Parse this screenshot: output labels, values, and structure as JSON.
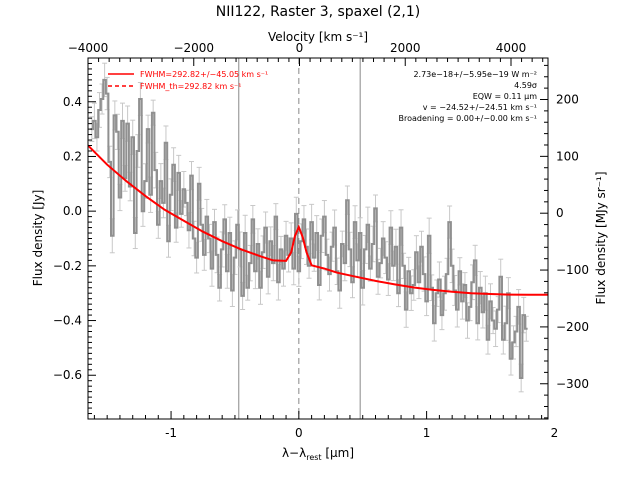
{
  "chart_data": {
    "type": "line",
    "title": "NII122, Raster 3, spaxel (2,1)",
    "xlabel": "λ−λ",
    "xlabel_sub": "rest",
    "xlabel_unit": " [μm]",
    "ylabel": "Flux density [Jy]",
    "top_xlabel": "Velocity [km s⁻¹]",
    "right_ylabel": "Flux density [MJy sr⁻¹]",
    "xlim": [
      -1.65,
      1.95
    ],
    "ylim": [
      -0.76,
      0.56
    ],
    "top_xlim": [
      -4000,
      4700
    ],
    "right_ylim": [
      -362,
      273
    ],
    "x_ticks": [
      -1,
      0,
      1,
      2
    ],
    "y_ticks": [
      -0.6,
      -0.4,
      -0.2,
      0.0,
      0.2,
      0.4
    ],
    "y_tick_labels": [
      "−0.6",
      "−0.4",
      "−0.2",
      "0.0",
      "0.2",
      "0.4"
    ],
    "top_x_ticks": [
      -4000,
      -2000,
      0,
      2000,
      4000
    ],
    "top_x_tick_labels": [
      "−4000",
      "−2000",
      "0",
      "2000",
      "4000"
    ],
    "right_y_ticks": [
      -300,
      -200,
      -100,
      0,
      100,
      200
    ],
    "right_y_tick_labels": [
      "−300",
      "−200",
      "−100",
      "0",
      "100",
      "200"
    ],
    "vlines": [
      -0.47,
      0.0,
      0.48
    ],
    "legend": [
      {
        "label": "FWHM=292.82+/−45.05 km s⁻¹",
        "style": "solid"
      },
      {
        "label": "FWHM_th=292.82 km s⁻¹",
        "style": "dashed"
      }
    ],
    "annotations": [
      "2.73e−18+/−5.95e−19 W m⁻²",
      "4.59σ",
      "EQW = 0.11 μm",
      "v = −24.52+/−24.51 km s⁻¹",
      "Broadening = 0.00+/−0.00 km s⁻¹"
    ],
    "series": [
      {
        "name": "spectrum",
        "color": "#909090",
        "x": [
          -1.62,
          -1.6,
          -1.58,
          -1.56,
          -1.54,
          -1.52,
          -1.5,
          -1.48,
          -1.46,
          -1.44,
          -1.42,
          -1.4,
          -1.38,
          -1.36,
          -1.34,
          -1.32,
          -1.3,
          -1.28,
          -1.26,
          -1.24,
          -1.22,
          -1.2,
          -1.18,
          -1.16,
          -1.14,
          -1.12,
          -1.1,
          -1.08,
          -1.06,
          -1.04,
          -1.02,
          -1.0,
          -0.98,
          -0.96,
          -0.94,
          -0.92,
          -0.9,
          -0.88,
          -0.86,
          -0.84,
          -0.82,
          -0.8,
          -0.78,
          -0.76,
          -0.74,
          -0.72,
          -0.7,
          -0.68,
          -0.66,
          -0.64,
          -0.62,
          -0.6,
          -0.58,
          -0.56,
          -0.54,
          -0.52,
          -0.5,
          -0.48,
          -0.46,
          -0.44,
          -0.42,
          -0.4,
          -0.38,
          -0.36,
          -0.34,
          -0.32,
          -0.3,
          -0.28,
          -0.26,
          -0.24,
          -0.22,
          -0.2,
          -0.18,
          -0.16,
          -0.14,
          -0.12,
          -0.1,
          -0.08,
          -0.06,
          -0.04,
          -0.02,
          0.0,
          0.02,
          0.04,
          0.06,
          0.08,
          0.1,
          0.12,
          0.14,
          0.16,
          0.18,
          0.2,
          0.22,
          0.24,
          0.26,
          0.28,
          0.3,
          0.32,
          0.34,
          0.36,
          0.38,
          0.4,
          0.42,
          0.44,
          0.46,
          0.48,
          0.5,
          0.52,
          0.54,
          0.56,
          0.58,
          0.6,
          0.62,
          0.64,
          0.66,
          0.68,
          0.7,
          0.72,
          0.74,
          0.76,
          0.78,
          0.8,
          0.82,
          0.84,
          0.86,
          0.88,
          0.9,
          0.92,
          0.94,
          0.96,
          0.98,
          1.0,
          1.02,
          1.04,
          1.06,
          1.08,
          1.1,
          1.12,
          1.14,
          1.16,
          1.18,
          1.2,
          1.22,
          1.24,
          1.26,
          1.28,
          1.3,
          1.32,
          1.34,
          1.36,
          1.38,
          1.4,
          1.42,
          1.44,
          1.46,
          1.48,
          1.5,
          1.52,
          1.54,
          1.56,
          1.58,
          1.6,
          1.62,
          1.64,
          1.66,
          1.68,
          1.7,
          1.72,
          1.74,
          1.76,
          1.78
        ],
        "y": [
          0.3,
          0.33,
          0.27,
          0.37,
          0.41,
          0.48,
          0.43,
          0.18,
          -0.09,
          0.35,
          0.29,
          0.05,
          0.33,
          0.12,
          0.32,
          0.09,
          0.27,
          -0.08,
          0.22,
          0.41,
          0.0,
          0.11,
          0.3,
          0.06,
          0.36,
          0.15,
          -0.05,
          0.11,
          0.03,
          0.25,
          -0.11,
          0.06,
          0.17,
          -0.06,
          0.14,
          -0.01,
          0.08,
          0.03,
          -0.07,
          0.13,
          -0.1,
          -0.17,
          0.1,
          -0.05,
          -0.16,
          -0.02,
          -0.1,
          -0.21,
          -0.04,
          -0.16,
          -0.28,
          -0.14,
          -0.03,
          -0.22,
          -0.08,
          -0.29,
          -0.17,
          -0.05,
          -0.14,
          -0.31,
          -0.08,
          -0.28,
          -0.19,
          -0.03,
          -0.22,
          -0.12,
          -0.28,
          -0.15,
          -0.06,
          -0.24,
          -0.11,
          -0.19,
          -0.02,
          -0.26,
          -0.14,
          -0.21,
          -0.09,
          -0.16,
          -0.1,
          -0.21,
          -0.01,
          -0.22,
          -0.11,
          -0.03,
          -0.13,
          -0.2,
          -0.04,
          -0.17,
          -0.08,
          -0.27,
          -0.09,
          -0.02,
          -0.16,
          -0.23,
          -0.13,
          -0.06,
          -0.22,
          -0.29,
          -0.12,
          -0.19,
          0.04,
          -0.14,
          -0.26,
          -0.04,
          -0.18,
          -0.08,
          -0.28,
          -0.14,
          -0.05,
          -0.21,
          -0.12,
          0.01,
          -0.24,
          -0.19,
          -0.1,
          -0.17,
          -0.25,
          -0.06,
          -0.2,
          -0.13,
          -0.3,
          -0.06,
          -0.2,
          -0.36,
          -0.22,
          -0.3,
          -0.27,
          -0.15,
          -0.26,
          -0.13,
          -0.23,
          -0.33,
          -0.09,
          -0.28,
          -0.41,
          -0.3,
          -0.25,
          -0.38,
          -0.3,
          -0.23,
          -0.04,
          -0.2,
          -0.29,
          -0.36,
          -0.22,
          -0.33,
          -0.27,
          -0.4,
          -0.35,
          -0.26,
          -0.18,
          -0.41,
          -0.28,
          -0.37,
          -0.3,
          -0.47,
          -0.33,
          -0.4,
          -0.43,
          -0.36,
          -0.24,
          -0.47,
          -0.41,
          -0.3,
          -0.54,
          -0.48,
          -0.44,
          -0.35,
          -0.61,
          -0.38,
          -0.43
        ]
      },
      {
        "name": "fit",
        "color": "#ff0000",
        "x": [
          -1.65,
          -1.5,
          -1.35,
          -1.2,
          -1.05,
          -0.9,
          -0.75,
          -0.6,
          -0.45,
          -0.3,
          -0.2,
          -0.1,
          -0.06,
          -0.03,
          0.0,
          0.03,
          0.06,
          0.1,
          0.2,
          0.3,
          0.45,
          0.6,
          0.75,
          0.9,
          1.05,
          1.2,
          1.35,
          1.5,
          1.65,
          1.8,
          1.95
        ],
        "y": [
          0.24,
          0.17,
          0.11,
          0.055,
          0.005,
          -0.035,
          -0.075,
          -0.11,
          -0.14,
          -0.165,
          -0.18,
          -0.182,
          -0.15,
          -0.09,
          -0.058,
          -0.095,
          -0.15,
          -0.198,
          -0.21,
          -0.225,
          -0.24,
          -0.255,
          -0.268,
          -0.279,
          -0.288,
          -0.295,
          -0.3,
          -0.303,
          -0.305,
          -0.306,
          -0.306
        ]
      }
    ]
  }
}
